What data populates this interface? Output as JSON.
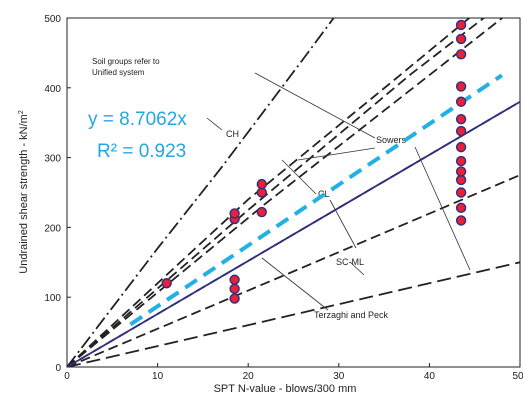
{
  "chart_data": {
    "type": "scatter",
    "xlabel": "SPT N-value - blows/300 mm",
    "ylabel": "Undrained shear strength - kN/m",
    "ylabel_sup": "2",
    "xlim": [
      0,
      50
    ],
    "ylim": [
      0,
      500
    ],
    "x_ticks": [
      "0",
      "10",
      "20",
      "30",
      "40",
      "50"
    ],
    "y_ticks": [
      "0",
      "100",
      "200",
      "300",
      "400",
      "500"
    ],
    "note_lines": [
      "Soil groups refer to",
      "Unified system"
    ],
    "equation": "y = 8.7062x",
    "r_squared": "R² = 0.923",
    "reference_curves": [
      {
        "label": "CH",
        "style": "dashed"
      },
      {
        "label": "CL",
        "style": "dashed"
      },
      {
        "label": "SC-ML",
        "style": "dashed"
      },
      {
        "label": "Sowers",
        "style": "dashed"
      },
      {
        "label": "Terzaghi and Peck",
        "style": "dashed"
      }
    ],
    "solid_line": {
      "slope": 7.6,
      "color": "#2e2f7f"
    },
    "trendline": {
      "slope": 8.7062,
      "x_range": [
        7,
        48
      ],
      "color": "#22b0e6"
    },
    "points": [
      {
        "x": 11,
        "y": 120
      },
      {
        "x": 18.5,
        "y": 98
      },
      {
        "x": 18.5,
        "y": 112
      },
      {
        "x": 18.5,
        "y": 125
      },
      {
        "x": 18.5,
        "y": 212
      },
      {
        "x": 18.5,
        "y": 220
      },
      {
        "x": 21.5,
        "y": 222
      },
      {
        "x": 21.5,
        "y": 250
      },
      {
        "x": 21.5,
        "y": 262
      },
      {
        "x": 43.5,
        "y": 210
      },
      {
        "x": 43.5,
        "y": 228
      },
      {
        "x": 43.5,
        "y": 250
      },
      {
        "x": 43.5,
        "y": 268
      },
      {
        "x": 43.5,
        "y": 280
      },
      {
        "x": 43.5,
        "y": 295
      },
      {
        "x": 43.5,
        "y": 315
      },
      {
        "x": 43.5,
        "y": 338
      },
      {
        "x": 43.5,
        "y": 355
      },
      {
        "x": 43.5,
        "y": 380
      },
      {
        "x": 43.5,
        "y": 402
      },
      {
        "x": 43.5,
        "y": 448
      },
      {
        "x": 43.5,
        "y": 470
      },
      {
        "x": 43.5,
        "y": 490
      }
    ],
    "colors": {
      "point_fill": "#e8203a",
      "point_stroke": "#2e2f7f",
      "equation": "#22a8e0",
      "axis": "#222222",
      "curve": "#222222"
    }
  }
}
